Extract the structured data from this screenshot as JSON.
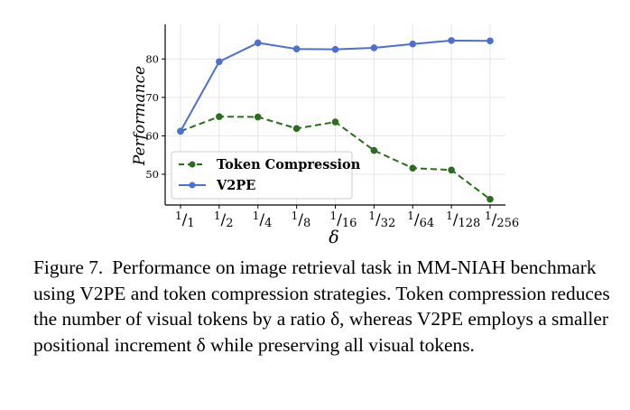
{
  "chart_data": {
    "type": "line",
    "categories": [
      "1/1",
      "1/2",
      "1/4",
      "1/8",
      "1/16",
      "1/32",
      "1/64",
      "1/128",
      "1/256"
    ],
    "tick_labels": [
      {
        "num": "1",
        "den": "1"
      },
      {
        "num": "1",
        "den": "2"
      },
      {
        "num": "1",
        "den": "4"
      },
      {
        "num": "1",
        "den": "8"
      },
      {
        "num": "1",
        "den": "16"
      },
      {
        "num": "1",
        "den": "32"
      },
      {
        "num": "1",
        "den": "64"
      },
      {
        "num": "1",
        "den": "128"
      },
      {
        "num": "1",
        "den": "256"
      }
    ],
    "series": [
      {
        "name": "Token Compression",
        "color": "#2a6e1d",
        "dash": "dashed",
        "values": [
          61.2,
          65.0,
          64.9,
          61.9,
          63.6,
          56.2,
          51.6,
          51.1,
          43.5
        ]
      },
      {
        "name": "V2PE",
        "color": "#4d6fd4",
        "dash": "solid",
        "values": [
          61.2,
          79.3,
          84.2,
          82.6,
          82.5,
          82.9,
          83.9,
          84.8,
          84.7
        ]
      }
    ],
    "xlabel": "δ",
    "ylabel": "Performance",
    "ylim": [
      42,
      89
    ],
    "yticks": [
      50,
      60,
      70,
      80
    ],
    "grid": true,
    "legend": "lower-left"
  },
  "caption": {
    "label": "Figure 7.",
    "text": "Performance on image retrieval task in MM-NIAH benchmark using V2PE and token compression strategies. Token compression reduces the number of visual tokens by a ratio δ, whereas V2PE employs a smaller positional increment δ while preserving all visual tokens."
  }
}
